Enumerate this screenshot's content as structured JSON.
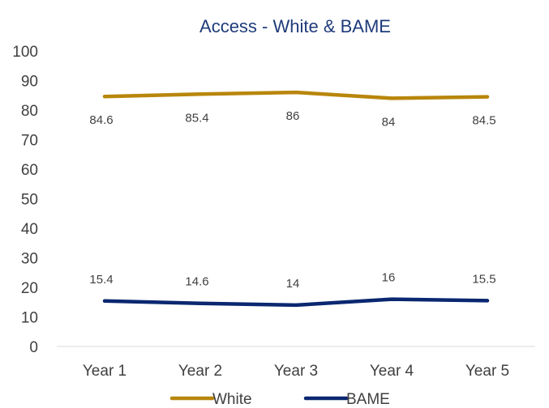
{
  "chart_data": {
    "type": "line",
    "title": "Access - White & BAME",
    "categories": [
      "Year 1",
      "Year 2",
      "Year 3",
      "Year 4",
      "Year 5"
    ],
    "ylim": [
      0,
      100
    ],
    "yticks": [
      0,
      10,
      20,
      30,
      40,
      50,
      60,
      70,
      80,
      90,
      100
    ],
    "grid": false,
    "legend_position": "bottom",
    "series": [
      {
        "name": "White",
        "color": "#b8860b",
        "values": [
          84.6,
          85.4,
          86,
          84,
          84.5
        ]
      },
      {
        "name": "BAME",
        "color": "#0a2770",
        "values": [
          15.4,
          14.6,
          14,
          16,
          15.5
        ]
      }
    ]
  }
}
